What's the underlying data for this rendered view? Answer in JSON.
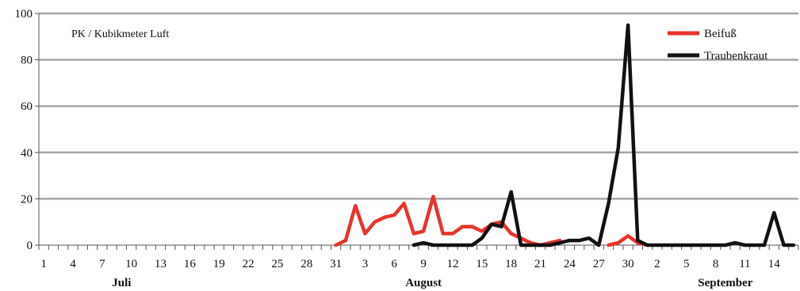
{
  "chart_data": {
    "type": "line",
    "unit_label": "PK / Kubikmeter Luft",
    "ylim": [
      0,
      100
    ],
    "y_ticks": [
      "0",
      "20",
      "40",
      "60",
      "80",
      "100"
    ],
    "grid": "horizontal",
    "legend_position": "top-right",
    "x_tick_labels": [
      "1",
      "4",
      "7",
      "10",
      "13",
      "16",
      "19",
      "22",
      "25",
      "28",
      "31",
      "3",
      "6",
      "9",
      "12",
      "15",
      "18",
      "21",
      "24",
      "27",
      "30",
      "2",
      "5",
      "8",
      "11",
      "14"
    ],
    "month_labels": [
      {
        "label": "Juli",
        "day_index": 8
      },
      {
        "label": "August",
        "day_index": 39
      },
      {
        "label": "September",
        "day_index": 70
      }
    ],
    "series": [
      {
        "name": "Beifuß",
        "color": "#e8342b",
        "start_day_index": 30,
        "values": [
          0,
          2,
          17,
          5,
          10,
          12,
          13,
          18,
          5,
          6,
          21,
          5,
          5,
          8,
          8,
          6,
          9,
          10,
          5,
          3,
          1,
          0,
          1,
          2,
          null,
          null,
          null,
          null,
          0,
          1,
          4,
          1,
          0
        ]
      },
      {
        "name": "Traubenkraut",
        "color": "#111111",
        "start_day_index": 38,
        "values": [
          0,
          1,
          0,
          0,
          0,
          0,
          0,
          3,
          9,
          8,
          23,
          0,
          0,
          0,
          0,
          1,
          2,
          2,
          3,
          0,
          18,
          42,
          95,
          2,
          0,
          0,
          0,
          0,
          0,
          0,
          0,
          0,
          0,
          1,
          0,
          0,
          0,
          14,
          0,
          0
        ]
      }
    ]
  }
}
